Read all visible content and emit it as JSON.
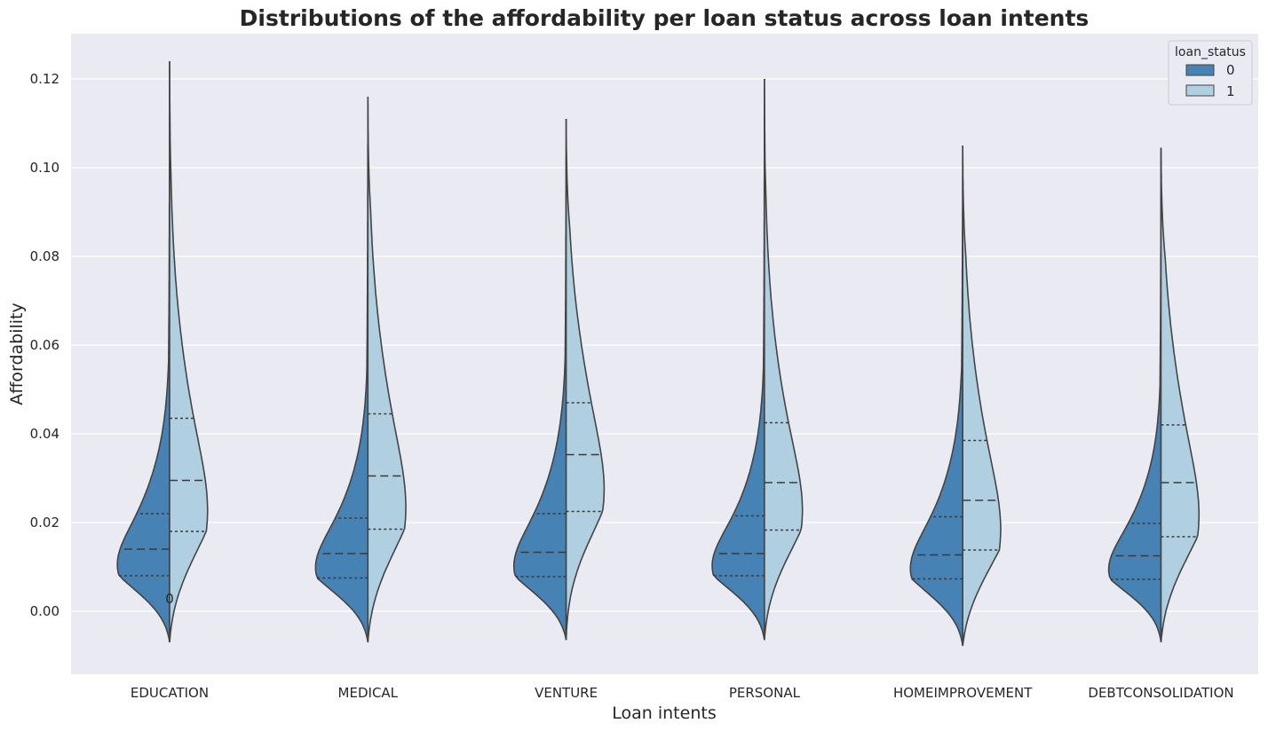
{
  "chart_data": {
    "type": "violin",
    "title": "Distributions of the affordability per loan status across loan intents",
    "xlabel": "Loan intents",
    "ylabel": "Affordability",
    "categories": [
      "EDUCATION",
      "MEDICAL",
      "VENTURE",
      "PERSONAL",
      "HOMEIMPROVEMENT",
      "DEBTCONSOLIDATION"
    ],
    "ylim": [
      -0.014,
      0.131
    ],
    "yticks": [
      "0.00",
      "0.02",
      "0.04",
      "0.06",
      "0.08",
      "0.10",
      "0.12"
    ],
    "grid": true,
    "split": true,
    "inner": "quartile",
    "legend": {
      "title": "loan_status",
      "position": "top-right",
      "entries": [
        "0",
        "1"
      ]
    },
    "annotation": {
      "text": "0",
      "category": "EDUCATION",
      "y": 0.003
    },
    "colors": {
      "status_0": "#4682b4",
      "status_1": "#b0d0e2",
      "background": "#eaeaf2",
      "edge": "#444444"
    },
    "series": [
      {
        "name": "0",
        "quartiles": [
          [
            0.008,
            0.014,
            0.022
          ],
          [
            0.0075,
            0.013,
            0.021
          ],
          [
            0.0078,
            0.0133,
            0.022
          ],
          [
            0.008,
            0.013,
            0.0215
          ],
          [
            0.0073,
            0.0127,
            0.0213
          ],
          [
            0.0072,
            0.0125,
            0.0198
          ]
        ],
        "y_range": [
          [
            -0.007,
            0.124
          ],
          [
            -0.007,
            0.116
          ],
          [
            -0.0065,
            0.111
          ],
          [
            -0.0065,
            0.12
          ],
          [
            -0.0078,
            0.105
          ],
          [
            -0.007,
            0.1045
          ]
        ]
      },
      {
        "name": "1",
        "quartiles": [
          [
            0.018,
            0.0295,
            0.0435
          ],
          [
            0.0185,
            0.0305,
            0.0445
          ],
          [
            0.0225,
            0.0353,
            0.047
          ],
          [
            0.0183,
            0.029,
            0.0425
          ],
          [
            0.0138,
            0.025,
            0.0385
          ],
          [
            0.0168,
            0.029,
            0.042
          ]
        ],
        "y_range": [
          [
            -0.007,
            0.124
          ],
          [
            -0.007,
            0.116
          ],
          [
            -0.0065,
            0.111
          ],
          [
            -0.0065,
            0.12
          ],
          [
            -0.0078,
            0.105
          ],
          [
            -0.007,
            0.1045
          ]
        ]
      }
    ]
  }
}
